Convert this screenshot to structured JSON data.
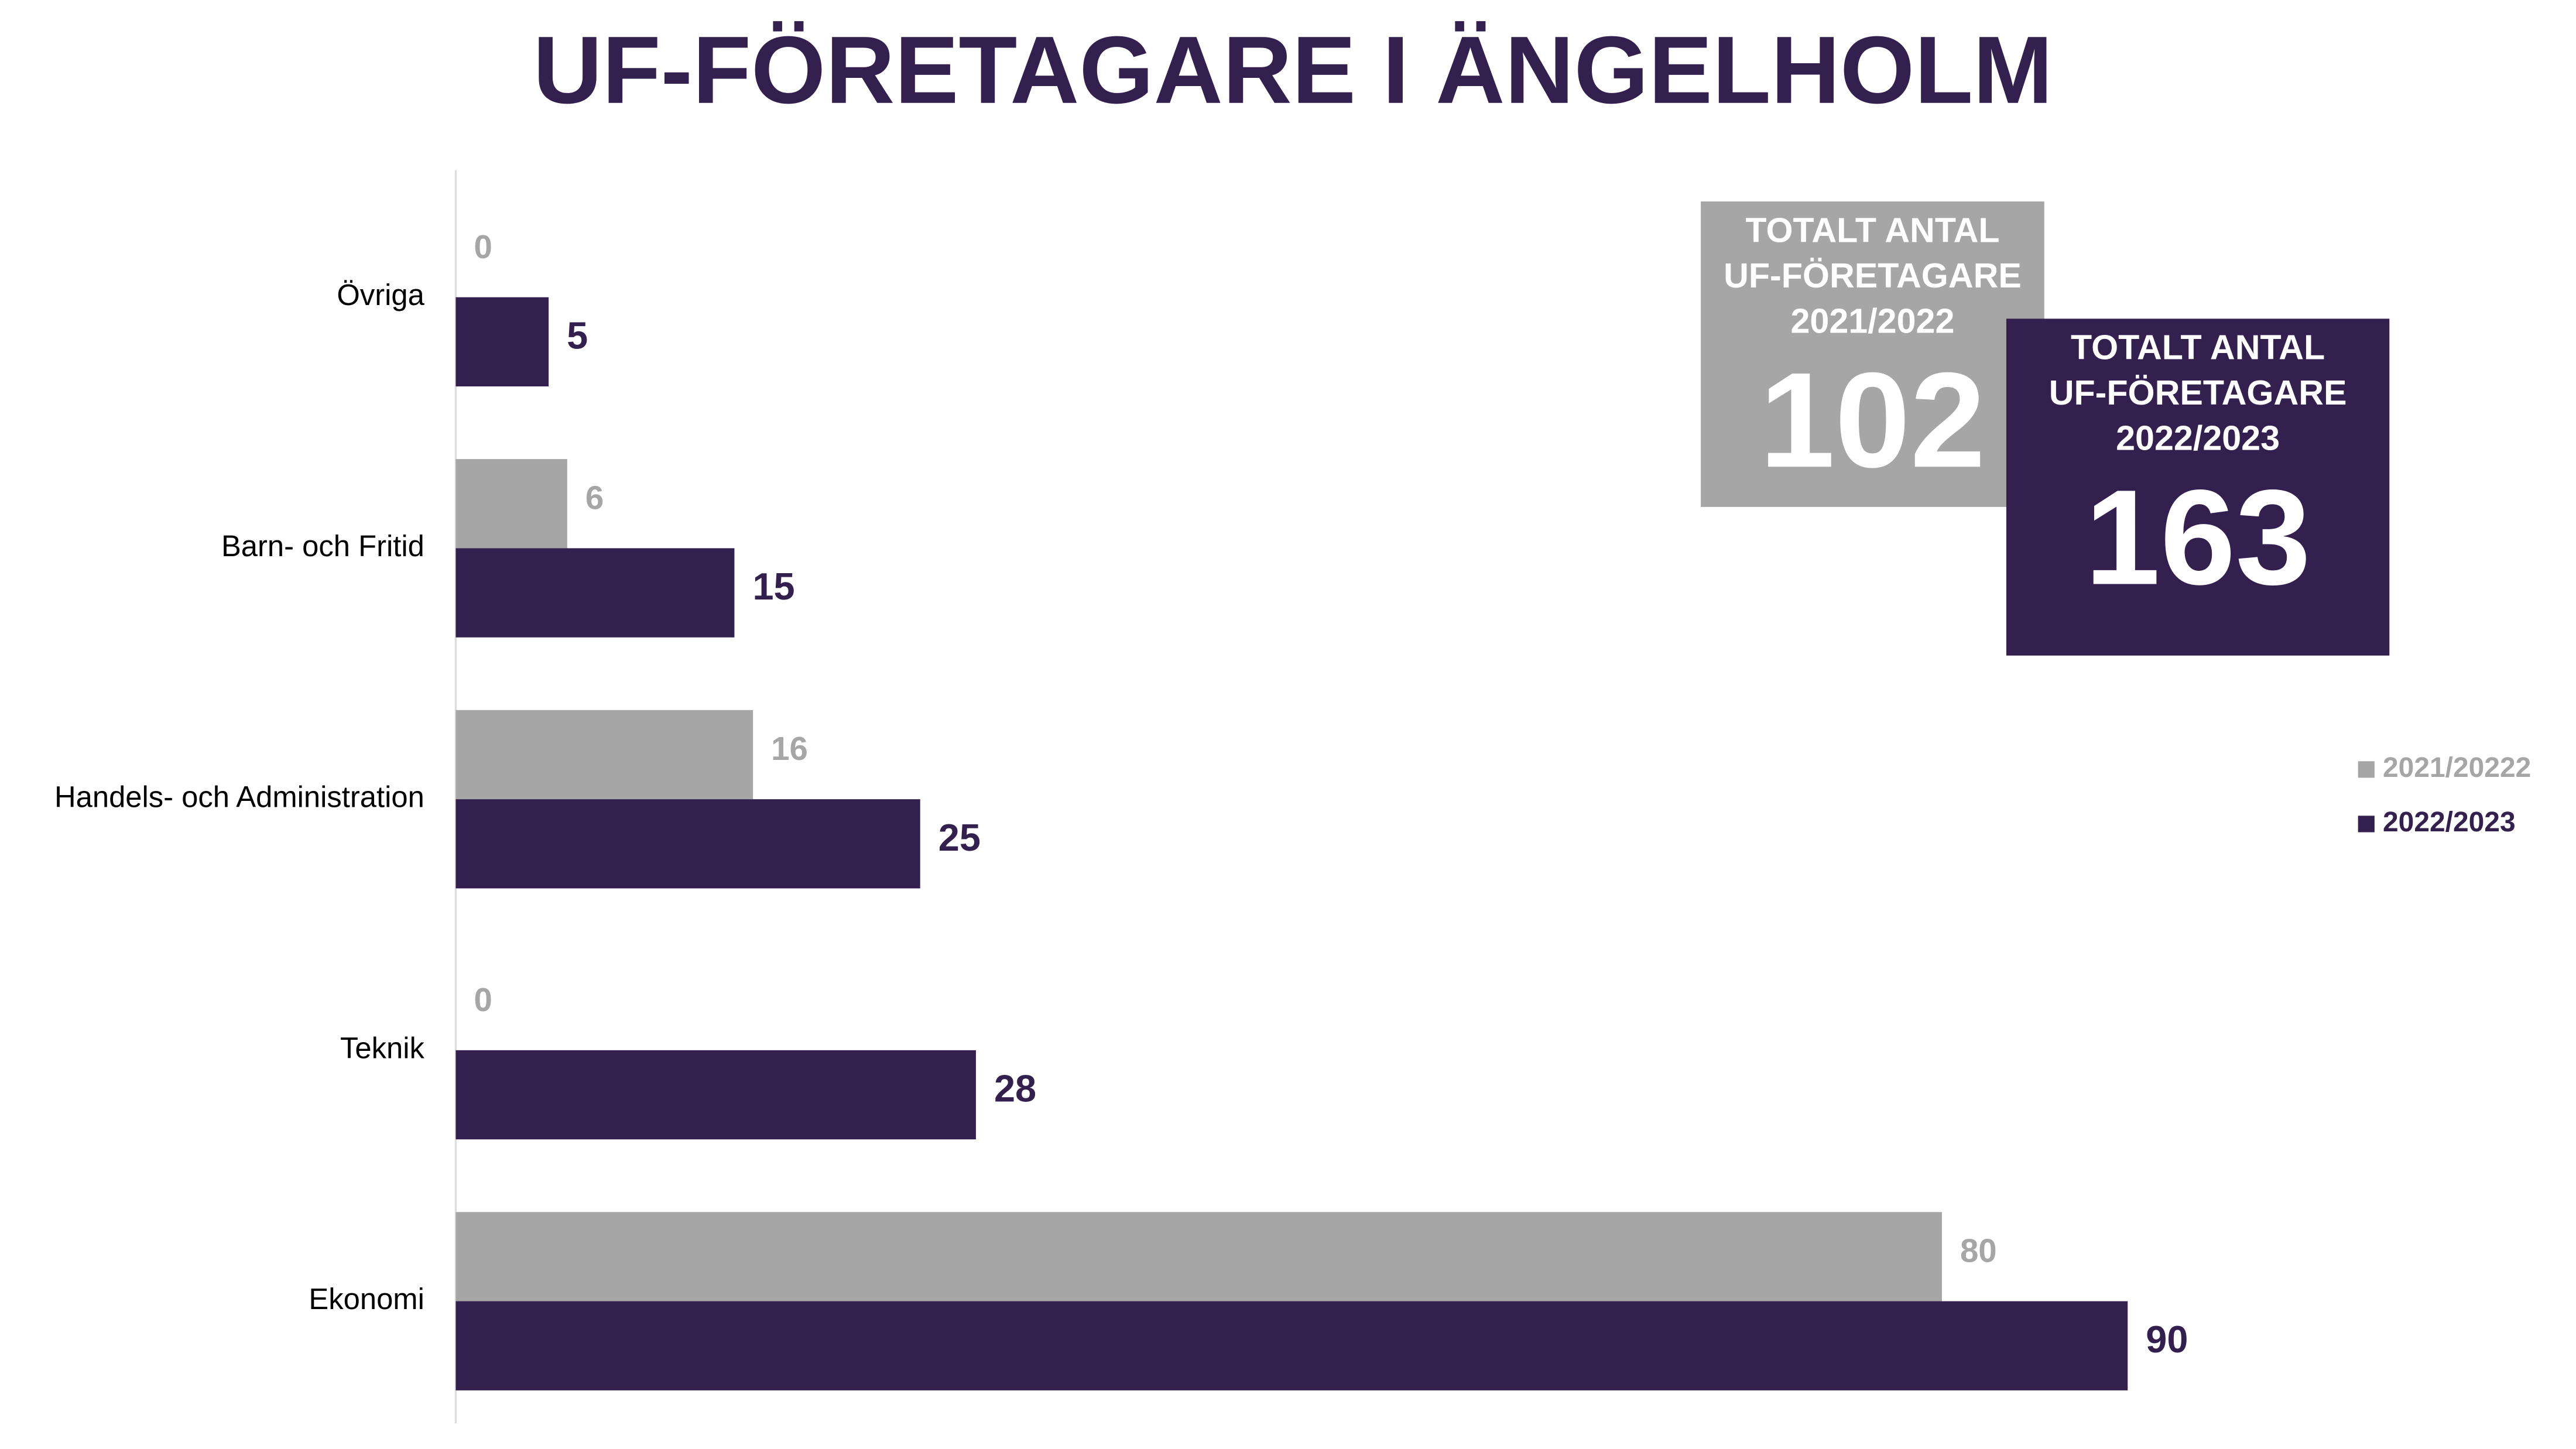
{
  "chart_data": {
    "type": "hbar",
    "title": "UF-FÖRETAGARE I ÄNGELHOLM",
    "categories": [
      "Övriga",
      "Barn- och Fritid",
      "Handels- och Administration",
      "Teknik",
      "Ekonomi"
    ],
    "series": [
      {
        "name": "2021/20222",
        "color": "#a6a6a6",
        "values": [
          0,
          6,
          16,
          0,
          80
        ]
      },
      {
        "name": "2022/2023",
        "color": "#33204f",
        "values": [
          5,
          15,
          25,
          28,
          90
        ]
      }
    ],
    "annotations": [
      {
        "lines": [
          "TOTALT ANTAL",
          "UF-FÖRETAGARE",
          "2021/2022"
        ],
        "total": 102,
        "color": "#a6a6a6"
      },
      {
        "lines": [
          "TOTALT ANTAL",
          "UF-FÖRETAGARE",
          "2022/2023"
        ],
        "total": 163,
        "color": "#33204f"
      }
    ],
    "legend": "right"
  }
}
